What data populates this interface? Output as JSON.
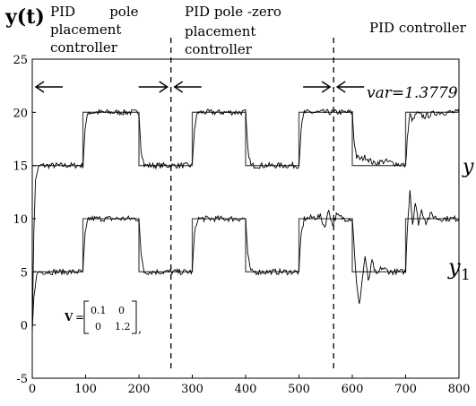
{
  "chart_data": {
    "type": "line",
    "ylabel": "y(t)",
    "xlim": [
      0,
      800
    ],
    "ylim": [
      -5,
      25
    ],
    "xticks": [
      0,
      100,
      200,
      300,
      400,
      500,
      600,
      700,
      800
    ],
    "yticks": [
      -5,
      0,
      5,
      10,
      15,
      20,
      25
    ],
    "switch_times": [
      260,
      565
    ],
    "segments": [
      {
        "label": "PID pole placement controller",
        "lines": [
          "PID        pole",
          "placement",
          "controller"
        ],
        "range": [
          0,
          260
        ]
      },
      {
        "label": "PID pole -zero placement controller",
        "lines": [
          "PID pole -zero",
          "placement",
          "controller"
        ],
        "range": [
          260,
          565
        ]
      },
      {
        "label": "PID controller",
        "lines": [
          "PID controller"
        ],
        "range": [
          565,
          800
        ]
      }
    ],
    "annotations": {
      "var_label": "var=1.3779",
      "matrix_symbol": "V",
      "matrix": [
        [
          "0.1",
          "0"
        ],
        [
          "0",
          "1.2"
        ]
      ]
    },
    "series": [
      {
        "name": "y2",
        "label_base": "y",
        "setpoint": [
          [
            0,
            15
          ],
          [
            95,
            15
          ],
          [
            95,
            20
          ],
          [
            200,
            20
          ],
          [
            200,
            15
          ],
          [
            300,
            15
          ],
          [
            300,
            20
          ],
          [
            400,
            20
          ],
          [
            400,
            15
          ],
          [
            500,
            15
          ],
          [
            500,
            20
          ],
          [
            600,
            20
          ],
          [
            600,
            15
          ],
          [
            700,
            15
          ],
          [
            700,
            20
          ],
          [
            800,
            20
          ]
        ],
        "output": [
          [
            0,
            -0.8
          ],
          [
            3,
            9
          ],
          [
            6,
            13.5
          ],
          [
            10,
            14.6
          ],
          [
            15,
            15
          ],
          [
            95,
            15
          ],
          [
            99,
            18.5
          ],
          [
            105,
            20
          ],
          [
            200,
            20
          ],
          [
            204,
            16.5
          ],
          [
            210,
            15
          ],
          [
            300,
            15
          ],
          [
            304,
            18.5
          ],
          [
            310,
            20
          ],
          [
            400,
            20
          ],
          [
            404,
            16.5
          ],
          [
            410,
            15
          ],
          [
            500,
            15
          ],
          [
            504,
            18.5
          ],
          [
            510,
            20
          ],
          [
            600,
            20
          ],
          [
            603,
            17.5
          ],
          [
            608,
            15.8
          ],
          [
            616,
            15.6
          ],
          [
            625,
            15.8
          ],
          [
            640,
            15.2
          ],
          [
            660,
            15.4
          ],
          [
            700,
            15
          ],
          [
            703,
            17.5
          ],
          [
            708,
            19.8
          ],
          [
            714,
            19.2
          ],
          [
            720,
            19.9
          ],
          [
            735,
            19.6
          ],
          [
            760,
            20
          ],
          [
            800,
            20
          ]
        ]
      },
      {
        "name": "y1",
        "label_base": "y",
        "label_sub": "1",
        "setpoint": [
          [
            0,
            5
          ],
          [
            95,
            5
          ],
          [
            95,
            10
          ],
          [
            200,
            10
          ],
          [
            200,
            5
          ],
          [
            300,
            5
          ],
          [
            300,
            10
          ],
          [
            400,
            10
          ],
          [
            400,
            5
          ],
          [
            500,
            5
          ],
          [
            500,
            10
          ],
          [
            600,
            10
          ],
          [
            600,
            5
          ],
          [
            700,
            5
          ],
          [
            700,
            10
          ],
          [
            800,
            10
          ]
        ],
        "output": [
          [
            0,
            -0.5
          ],
          [
            3,
            2.5
          ],
          [
            7,
            4.5
          ],
          [
            12,
            5
          ],
          [
            95,
            5
          ],
          [
            99,
            8.5
          ],
          [
            105,
            10
          ],
          [
            200,
            10
          ],
          [
            204,
            6.5
          ],
          [
            210,
            5
          ],
          [
            300,
            5
          ],
          [
            304,
            8.5
          ],
          [
            310,
            10
          ],
          [
            400,
            10
          ],
          [
            404,
            6.5
          ],
          [
            410,
            5
          ],
          [
            500,
            5
          ],
          [
            504,
            8.5
          ],
          [
            510,
            10
          ],
          [
            540,
            10.2
          ],
          [
            548,
            9.2
          ],
          [
            556,
            10.8
          ],
          [
            563,
            9.4
          ],
          [
            570,
            10.3
          ],
          [
            585,
            10
          ],
          [
            600,
            10
          ],
          [
            604,
            7
          ],
          [
            608,
            3.8
          ],
          [
            613,
            1.8
          ],
          [
            618,
            4
          ],
          [
            624,
            6.5
          ],
          [
            630,
            4
          ],
          [
            637,
            6
          ],
          [
            645,
            4.6
          ],
          [
            655,
            5.4
          ],
          [
            670,
            5
          ],
          [
            700,
            5
          ],
          [
            703,
            9
          ],
          [
            708,
            12.8
          ],
          [
            713,
            9.5
          ],
          [
            718,
            11.5
          ],
          [
            724,
            9.6
          ],
          [
            730,
            10.8
          ],
          [
            738,
            9.7
          ],
          [
            748,
            10.4
          ],
          [
            760,
            10
          ],
          [
            800,
            10
          ]
        ]
      }
    ]
  }
}
